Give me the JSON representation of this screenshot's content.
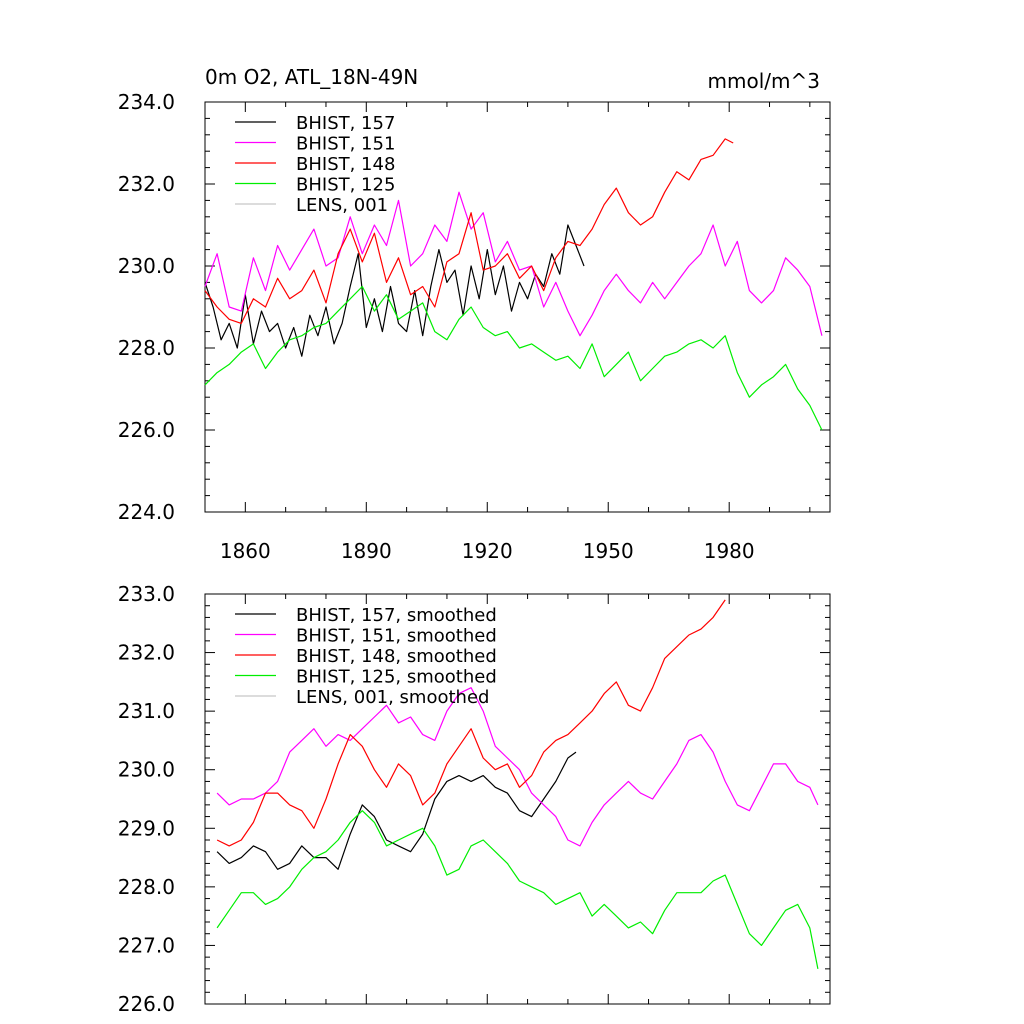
{
  "chart_data": [
    {
      "type": "line",
      "title_left": "0m O2, ATL_18N-49N",
      "title_right": "mmol/m^3",
      "xlim": [
        1850,
        2005
      ],
      "ylim": [
        224.0,
        234.0
      ],
      "xticks": [
        1860,
        1890,
        1920,
        1950,
        1980
      ],
      "yticks": [
        "224.0",
        "226.0",
        "228.0",
        "230.0",
        "232.0",
        "234.0"
      ],
      "legend_position": "top-left",
      "series": [
        {
          "name": "BHIST, 157",
          "color": "#000000",
          "x": [
            1850,
            1852,
            1854,
            1856,
            1858,
            1860,
            1862,
            1864,
            1866,
            1868,
            1870,
            1872,
            1874,
            1876,
            1878,
            1880,
            1882,
            1884,
            1886,
            1888,
            1890,
            1892,
            1894,
            1896,
            1898,
            1900,
            1902,
            1904,
            1906,
            1908,
            1910,
            1912,
            1914,
            1916,
            1918,
            1920,
            1922,
            1924,
            1926,
            1928,
            1930,
            1932,
            1934,
            1936,
            1938,
            1940,
            1942,
            1944
          ],
          "values": [
            229.6,
            229.0,
            228.2,
            228.6,
            228.0,
            229.3,
            228.1,
            228.9,
            228.4,
            228.6,
            228.0,
            228.5,
            227.8,
            228.8,
            228.3,
            229.0,
            228.1,
            228.6,
            229.5,
            230.3,
            228.5,
            229.2,
            228.4,
            229.5,
            228.6,
            228.4,
            229.4,
            228.3,
            229.5,
            230.4,
            229.6,
            229.9,
            228.8,
            230.0,
            229.2,
            230.4,
            229.3,
            230.0,
            228.9,
            229.6,
            229.2,
            229.8,
            229.5,
            230.3,
            229.8,
            231.0,
            230.5,
            230.0
          ]
        },
        {
          "name": "BHIST, 151",
          "color": "#ff00ff",
          "x": [
            1850,
            1853,
            1856,
            1859,
            1862,
            1865,
            1868,
            1871,
            1874,
            1877,
            1880,
            1883,
            1886,
            1889,
            1892,
            1895,
            1898,
            1901,
            1904,
            1907,
            1910,
            1913,
            1916,
            1919,
            1922,
            1925,
            1928,
            1931,
            1934,
            1937,
            1940,
            1943,
            1946,
            1949,
            1952,
            1955,
            1958,
            1961,
            1964,
            1967,
            1970,
            1973,
            1976,
            1979,
            1982,
            1985,
            1988,
            1991,
            1994,
            1997,
            2000,
            2003
          ],
          "values": [
            229.5,
            230.3,
            229.0,
            228.9,
            230.2,
            229.4,
            230.5,
            229.9,
            230.4,
            230.9,
            230.0,
            230.2,
            231.2,
            230.3,
            231.0,
            230.5,
            231.6,
            230.0,
            230.3,
            231.0,
            230.6,
            231.8,
            230.9,
            231.3,
            230.1,
            230.6,
            229.9,
            230.0,
            229.0,
            229.6,
            228.9,
            228.3,
            228.8,
            229.4,
            229.8,
            229.4,
            229.1,
            229.6,
            229.2,
            229.6,
            230.0,
            230.3,
            231.0,
            230.0,
            230.6,
            229.4,
            229.1,
            229.4,
            230.2,
            229.9,
            229.5,
            228.3
          ]
        },
        {
          "name": "BHIST, 148",
          "color": "#ff0000",
          "x": [
            1850,
            1853,
            1856,
            1859,
            1862,
            1865,
            1868,
            1871,
            1874,
            1877,
            1880,
            1883,
            1886,
            1889,
            1892,
            1895,
            1898,
            1901,
            1904,
            1907,
            1910,
            1913,
            1916,
            1919,
            1922,
            1925,
            1928,
            1931,
            1934,
            1937,
            1940,
            1943,
            1946,
            1949,
            1952,
            1955,
            1958,
            1961,
            1964,
            1967,
            1970,
            1973,
            1976,
            1979,
            1981
          ],
          "values": [
            229.4,
            229.0,
            228.7,
            228.6,
            229.2,
            229.0,
            229.7,
            229.2,
            229.4,
            229.9,
            229.1,
            230.3,
            230.9,
            230.1,
            230.8,
            229.6,
            230.2,
            229.3,
            229.5,
            229.0,
            230.1,
            230.3,
            231.3,
            229.9,
            230.0,
            230.3,
            229.7,
            230.0,
            229.4,
            230.2,
            230.6,
            230.5,
            230.9,
            231.5,
            231.9,
            231.3,
            231.0,
            231.2,
            231.8,
            232.3,
            232.1,
            232.6,
            232.7,
            233.1,
            233.0
          ]
        },
        {
          "name": "BHIST, 125",
          "color": "#00ee00",
          "x": [
            1850,
            1853,
            1856,
            1859,
            1862,
            1865,
            1868,
            1871,
            1874,
            1877,
            1880,
            1883,
            1886,
            1889,
            1892,
            1895,
            1898,
            1901,
            1904,
            1907,
            1910,
            1913,
            1916,
            1919,
            1922,
            1925,
            1928,
            1931,
            1934,
            1937,
            1940,
            1943,
            1946,
            1949,
            1952,
            1955,
            1958,
            1961,
            1964,
            1967,
            1970,
            1973,
            1976,
            1979,
            1982,
            1985,
            1988,
            1991,
            1994,
            1997,
            2000,
            2003
          ],
          "values": [
            227.1,
            227.4,
            227.6,
            227.9,
            228.1,
            227.5,
            227.9,
            228.2,
            228.3,
            228.5,
            228.6,
            228.9,
            229.2,
            229.5,
            228.9,
            229.3,
            228.7,
            228.9,
            229.1,
            228.4,
            228.2,
            228.7,
            229.0,
            228.5,
            228.3,
            228.4,
            228.0,
            228.1,
            227.9,
            227.7,
            227.8,
            227.5,
            228.1,
            227.3,
            227.6,
            227.9,
            227.2,
            227.5,
            227.8,
            227.9,
            228.1,
            228.2,
            228.0,
            228.3,
            227.4,
            226.8,
            227.1,
            227.3,
            227.6,
            227.0,
            226.6,
            226.0
          ]
        },
        {
          "name": "LENS, 001",
          "color": "#c8c8c8",
          "x": [],
          "values": []
        }
      ]
    },
    {
      "type": "line",
      "xlim": [
        1850,
        2005
      ],
      "ylim": [
        226.0,
        233.0
      ],
      "yticks": [
        "226.0",
        "227.0",
        "228.0",
        "229.0",
        "230.0",
        "231.0",
        "232.0",
        "233.0"
      ],
      "legend_position": "top-left",
      "series": [
        {
          "name": "BHIST, 157, smoothed",
          "color": "#000000",
          "x": [
            1853,
            1856,
            1859,
            1862,
            1865,
            1868,
            1871,
            1874,
            1877,
            1880,
            1883,
            1886,
            1889,
            1892,
            1895,
            1898,
            1901,
            1904,
            1907,
            1910,
            1913,
            1916,
            1919,
            1922,
            1925,
            1928,
            1931,
            1934,
            1937,
            1940,
            1942
          ],
          "values": [
            228.6,
            228.4,
            228.5,
            228.7,
            228.6,
            228.3,
            228.4,
            228.7,
            228.5,
            228.5,
            228.3,
            228.9,
            229.4,
            229.2,
            228.8,
            228.7,
            228.6,
            228.9,
            229.5,
            229.8,
            229.9,
            229.8,
            229.9,
            229.7,
            229.6,
            229.3,
            229.2,
            229.5,
            229.8,
            230.2,
            230.3
          ]
        },
        {
          "name": "BHIST, 151, smoothed",
          "color": "#ff00ff",
          "x": [
            1853,
            1856,
            1859,
            1862,
            1865,
            1868,
            1871,
            1874,
            1877,
            1880,
            1883,
            1886,
            1889,
            1892,
            1895,
            1898,
            1901,
            1904,
            1907,
            1910,
            1913,
            1916,
            1919,
            1922,
            1925,
            1928,
            1931,
            1934,
            1937,
            1940,
            1943,
            1946,
            1949,
            1952,
            1955,
            1958,
            1961,
            1964,
            1967,
            1970,
            1973,
            1976,
            1979,
            1982,
            1985,
            1988,
            1991,
            1994,
            1997,
            2000,
            2002
          ],
          "values": [
            229.6,
            229.4,
            229.5,
            229.5,
            229.6,
            229.8,
            230.3,
            230.5,
            230.7,
            230.4,
            230.6,
            230.5,
            230.7,
            230.9,
            231.1,
            230.8,
            230.9,
            230.6,
            230.5,
            231.0,
            231.3,
            231.4,
            231.0,
            230.4,
            230.2,
            230.0,
            229.6,
            229.4,
            229.2,
            228.8,
            228.7,
            229.1,
            229.4,
            229.6,
            229.8,
            229.6,
            229.5,
            229.8,
            230.1,
            230.5,
            230.6,
            230.3,
            229.8,
            229.4,
            229.3,
            229.7,
            230.1,
            230.1,
            229.8,
            229.7,
            229.4
          ]
        },
        {
          "name": "BHIST, 148, smoothed",
          "color": "#ff0000",
          "x": [
            1853,
            1856,
            1859,
            1862,
            1865,
            1868,
            1871,
            1874,
            1877,
            1880,
            1883,
            1886,
            1889,
            1892,
            1895,
            1898,
            1901,
            1904,
            1907,
            1910,
            1913,
            1916,
            1919,
            1922,
            1925,
            1928,
            1931,
            1934,
            1937,
            1940,
            1943,
            1946,
            1949,
            1952,
            1955,
            1958,
            1961,
            1964,
            1967,
            1970,
            1973,
            1976,
            1979
          ],
          "values": [
            228.8,
            228.7,
            228.8,
            229.1,
            229.6,
            229.6,
            229.4,
            229.3,
            229.0,
            229.5,
            230.1,
            230.6,
            230.4,
            230.0,
            229.7,
            230.1,
            229.9,
            229.4,
            229.6,
            230.1,
            230.4,
            230.7,
            230.2,
            230.0,
            230.1,
            229.7,
            229.9,
            230.3,
            230.5,
            230.6,
            230.8,
            231.0,
            231.3,
            231.5,
            231.1,
            231.0,
            231.4,
            231.9,
            232.1,
            232.3,
            232.4,
            232.6,
            232.9
          ]
        },
        {
          "name": "BHIST, 125, smoothed",
          "color": "#00ee00",
          "x": [
            1853,
            1856,
            1859,
            1862,
            1865,
            1868,
            1871,
            1874,
            1877,
            1880,
            1883,
            1886,
            1889,
            1892,
            1895,
            1898,
            1901,
            1904,
            1907,
            1910,
            1913,
            1916,
            1919,
            1922,
            1925,
            1928,
            1931,
            1934,
            1937,
            1940,
            1943,
            1946,
            1949,
            1952,
            1955,
            1958,
            1961,
            1964,
            1967,
            1970,
            1973,
            1976,
            1979,
            1982,
            1985,
            1988,
            1991,
            1994,
            1997,
            2000,
            2002
          ],
          "values": [
            227.3,
            227.6,
            227.9,
            227.9,
            227.7,
            227.8,
            228.0,
            228.3,
            228.5,
            228.6,
            228.8,
            229.1,
            229.3,
            229.1,
            228.7,
            228.8,
            228.9,
            229.0,
            228.7,
            228.2,
            228.3,
            228.7,
            228.8,
            228.6,
            228.4,
            228.1,
            228.0,
            227.9,
            227.7,
            227.8,
            227.9,
            227.5,
            227.7,
            227.5,
            227.3,
            227.4,
            227.2,
            227.6,
            227.9,
            227.9,
            227.9,
            228.1,
            228.2,
            227.7,
            227.2,
            227.0,
            227.3,
            227.6,
            227.7,
            227.3,
            226.6
          ]
        },
        {
          "name": "LENS, 001, smoothed",
          "color": "#c8c8c8",
          "x": [],
          "values": []
        }
      ]
    }
  ]
}
